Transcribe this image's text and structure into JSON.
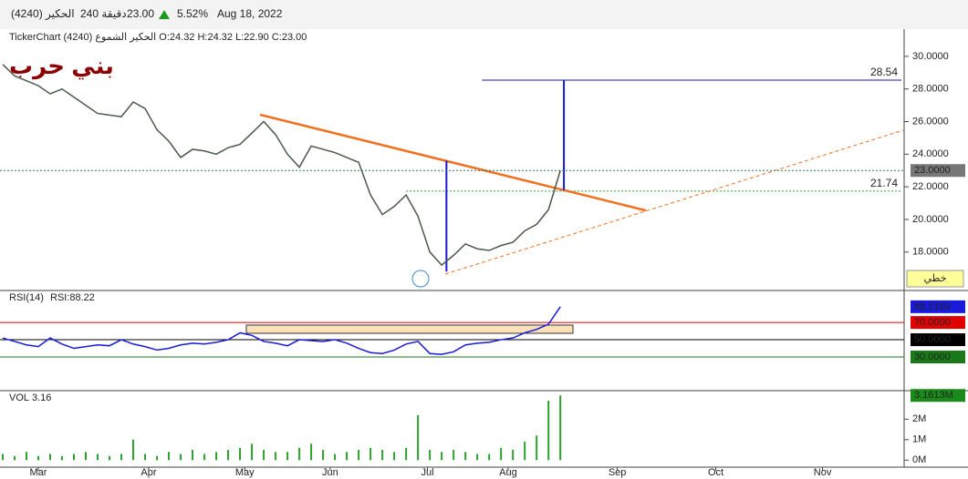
{
  "header": {
    "symbol": "الحكير (4240)",
    "interval": "240 دقيقة",
    "price": "23.00",
    "change": "5.52%",
    "date": "Aug 18, 2022",
    "legend": "TickerChart الحكير الشموع (4240) O:24.32 H:24.32 L:22.90 C:23.00",
    "watermark": "بني حرب",
    "button": "خطي"
  },
  "chart_data": [
    {
      "type": "line",
      "color": "#4a5a4a",
      "categories": [
        null,
        null,
        null,
        null,
        null,
        null,
        null,
        null,
        null,
        null,
        null,
        null,
        null,
        null,
        null,
        null,
        null,
        null,
        null,
        null,
        null,
        null,
        null,
        null,
        null,
        null,
        null,
        null,
        null,
        null,
        null,
        null,
        null,
        null,
        null,
        null,
        null,
        null,
        null,
        null,
        null,
        null,
        null,
        null,
        null,
        null,
        null,
        null
      ],
      "values": [
        29.5,
        28.8,
        28.5,
        28.2,
        27.7,
        28.0,
        27.5,
        27.0,
        26.5,
        26.4,
        26.3,
        27.2,
        26.8,
        25.5,
        24.8,
        23.8,
        24.3,
        24.2,
        24.0,
        24.4,
        24.6,
        25.3,
        26.0,
        25.2,
        24.0,
        23.2,
        24.5,
        24.3,
        24.1,
        23.8,
        23.5,
        21.5,
        20.3,
        20.8,
        21.5,
        20.2,
        18.0,
        17.2,
        17.8,
        18.5,
        18.2,
        18.1,
        18.4,
        18.6,
        19.3,
        19.7,
        20.6,
        23.0
      ],
      "xlim": [
        -0.23,
        75.9
      ],
      "ylim": [
        15.7,
        31.5
      ],
      "yticks": [
        {
          "value": 18,
          "label": "18.0000"
        },
        {
          "value": 20,
          "label": "20.0000"
        },
        {
          "value": 22,
          "label": "22.0000"
        },
        {
          "value": 24,
          "label": "24.0000"
        },
        {
          "value": 26,
          "label": "26.0000"
        },
        {
          "value": 28,
          "label": "28.0000"
        },
        {
          "value": 30,
          "label": "30.0000"
        }
      ],
      "current": {
        "value": 23,
        "label": "23.0000",
        "color": "#777777"
      },
      "hlines": [
        {
          "value": 28.54,
          "label": "28.54",
          "color": "#1a1aa0",
          "from": 40.4,
          "style": "solid"
        },
        {
          "value": 21.74,
          "label": "21.74",
          "color": "#2c9a2c",
          "from": 34,
          "style": "dotted"
        }
      ],
      "segments": [
        {
          "points": [
            [
              21.7,
              26.42
            ],
            [
              54.2,
              20.55
            ]
          ],
          "color": "#f07020",
          "width": 2.5,
          "style": "solid"
        },
        {
          "points": [
            [
              37.3,
              16.65
            ],
            [
              75.9,
              25.47
            ]
          ],
          "color": "#f07020",
          "width": 1,
          "style": "dashed"
        },
        {
          "points": [
            [
              37.4,
              23.6
            ],
            [
              37.4,
              16.8
            ]
          ],
          "color": "#1a1ad0",
          "width": 2,
          "style": "solid"
        },
        {
          "points": [
            [
              47.3,
              28.54
            ],
            [
              47.3,
              21.8
            ]
          ],
          "color": "#1a1ad0",
          "width": 2,
          "style": "solid"
        }
      ]
    },
    {
      "type": "line",
      "color": "#1a1adb",
      "title": "RSI(14)",
      "subtitle": "RSI:88.22",
      "values": [
        52,
        48,
        44,
        42,
        52,
        45,
        40,
        42,
        44,
        43,
        50,
        45,
        42,
        38,
        40,
        44,
        46,
        45,
        47,
        50,
        58,
        55,
        48,
        46,
        43,
        50,
        49,
        48,
        50,
        46,
        40,
        35,
        34,
        38,
        45,
        48,
        34,
        33,
        36,
        44,
        46,
        47,
        50,
        52,
        58,
        62,
        68,
        88.22
      ],
      "xlim": [
        -0.23,
        75.9
      ],
      "ylim": [
        -8,
        106
      ],
      "levels": [
        {
          "value": 70,
          "label": "70.0000",
          "color": "#e00000"
        },
        {
          "value": 50,
          "label": "50.0000",
          "color": "#000000"
        },
        {
          "value": 30,
          "label": "30.0000",
          "color": "#1a7a1a"
        }
      ],
      "current": {
        "value": 88.2169,
        "label": "88.2169",
        "color": "#1a1adb"
      }
    },
    {
      "type": "bar",
      "color": "#2ca02c",
      "title": "VOL",
      "subtitle": "3.16",
      "values": [
        0.3,
        0.2,
        0.4,
        0.2,
        0.3,
        0.2,
        0.3,
        0.4,
        0.3,
        0.2,
        0.3,
        1.0,
        0.3,
        0.2,
        0.4,
        0.3,
        0.5,
        0.3,
        0.4,
        0.5,
        0.6,
        0.8,
        0.5,
        0.4,
        0.4,
        0.6,
        0.8,
        0.5,
        0.3,
        0.4,
        0.5,
        0.6,
        0.5,
        0.4,
        0.6,
        2.2,
        0.5,
        0.4,
        0.5,
        0.4,
        0.3,
        0.3,
        0.6,
        0.5,
        0.9,
        1.2,
        2.9,
        3.16
      ],
      "xlim": [
        -0.23,
        75.9
      ],
      "ylim": [
        -0.3,
        3.35
      ],
      "yticks": [
        {
          "value": 0,
          "label": "0M"
        },
        {
          "value": 1,
          "label": "1M"
        },
        {
          "value": 2,
          "label": "2M"
        }
      ],
      "current": {
        "value": 3.1613,
        "label": "3.1613M",
        "color": "#1a8a1a"
      },
      "xticks": [
        {
          "value": 3,
          "label": "Mar"
        },
        {
          "value": 12.3,
          "label": "Apr"
        },
        {
          "value": 20.4,
          "label": "May"
        },
        {
          "value": 27.6,
          "label": "Jun"
        },
        {
          "value": 35.8,
          "label": "Jul"
        },
        {
          "value": 42.6,
          "label": "Aug"
        },
        {
          "value": 51.8,
          "label": "Sep"
        },
        {
          "value": 60.1,
          "label": "Oct"
        },
        {
          "value": 69.1,
          "label": "Nov"
        }
      ]
    }
  ]
}
